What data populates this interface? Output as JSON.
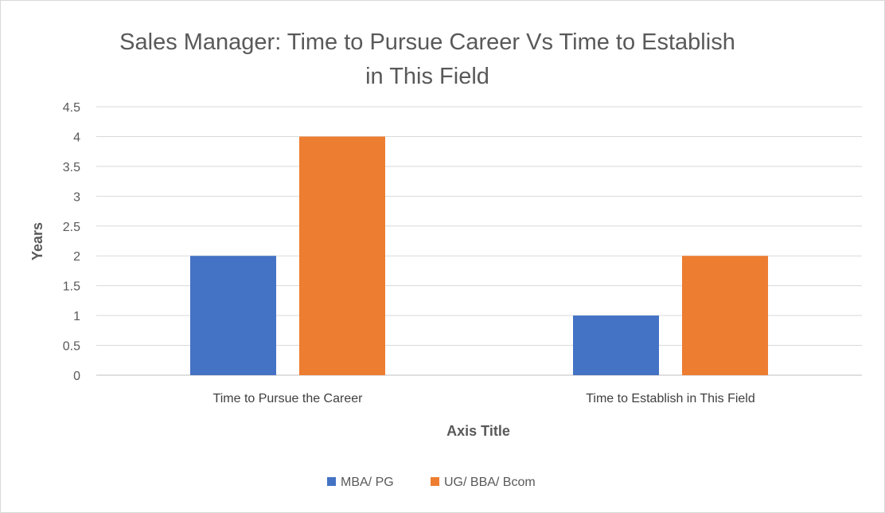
{
  "chart_data": {
    "type": "bar",
    "title_lines": [
      "Sales Manager: Time to Pursue Career Vs Time to Establish",
      "in This Field"
    ],
    "categories": [
      "Time to Pursue the Career",
      "Time to Establish in This Field"
    ],
    "series": [
      {
        "name": "MBA/ PG",
        "values": [
          2,
          1
        ],
        "color": "#4472c4"
      },
      {
        "name": "UG/ BBA/ Bcom",
        "values": [
          4,
          2
        ],
        "color": "#ed7d31"
      }
    ],
    "xlabel": "Axis Title",
    "ylabel": "Years",
    "ylim": [
      0,
      4.5
    ],
    "yticks": [
      "0",
      "0.5",
      "1",
      "1.5",
      "2",
      "2.5",
      "3",
      "3.5",
      "4",
      "4.5"
    ],
    "grid": true,
    "legend_position": "bottom"
  }
}
